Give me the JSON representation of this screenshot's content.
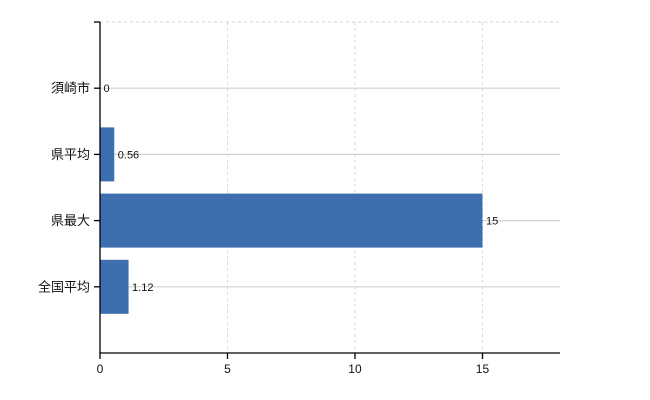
{
  "chart_data": {
    "type": "bar",
    "orientation": "horizontal",
    "title": "",
    "xlabel": "",
    "ylabel": "",
    "categories": [
      "須崎市",
      "県平均",
      "県最大",
      "全国平均"
    ],
    "values": [
      0,
      0.56,
      15,
      1.12
    ],
    "value_labels": [
      "0",
      "0.56",
      "15",
      "1.12"
    ],
    "x_ticks": [
      0,
      5,
      10,
      15
    ],
    "x_tick_labels": [
      "0",
      "5",
      "10",
      "15"
    ],
    "xlim": [
      0,
      18.04
    ],
    "grid": true,
    "legend": "none",
    "colors": {
      "bar": "#3d6eb0",
      "axis": "#000000",
      "grid_horizontal": "#ccd7c8",
      "grid_vertical": "#d9d9d9",
      "plot_top_border": "#d2d2d2",
      "label_text": "#111111",
      "background": "#ffffff"
    }
  }
}
